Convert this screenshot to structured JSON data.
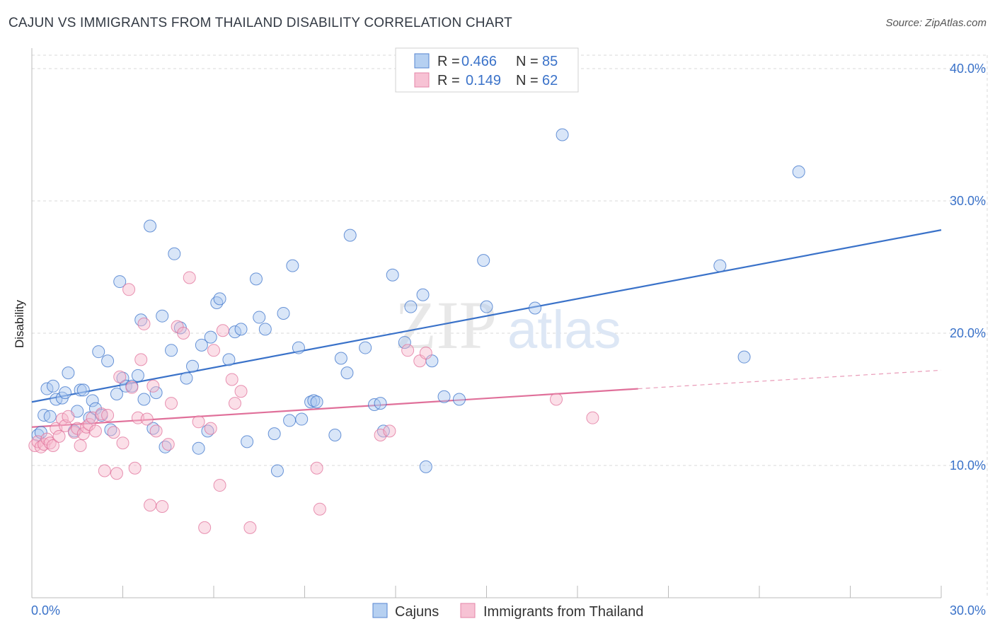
{
  "title": "CAJUN VS IMMIGRANTS FROM THAILAND DISABILITY CORRELATION CHART",
  "source": "Source: ZipAtlas.com",
  "watermark": {
    "zip": "ZIP",
    "atlas": "atlas"
  },
  "colors": {
    "blue": "#3a72c9",
    "blue_fill": "#aac8ef",
    "pink": "#e0709a",
    "pink_fill": "#f6b8cd",
    "grid": "#d8d8d8"
  },
  "legend": {
    "rows": [
      {
        "r_label": "R =",
        "r_value": "0.466",
        "n_label": "N =",
        "n_value": "85"
      },
      {
        "r_label": "R =",
        "r_value": "0.149",
        "n_label": "N =",
        "n_value": "62"
      }
    ]
  },
  "bottom_legend": [
    "Cajuns",
    "Immigrants from Thailand"
  ],
  "chart_data": {
    "type": "scatter",
    "xlabel": "",
    "ylabel": "Disability",
    "xlim": [
      0,
      30
    ],
    "ylim": [
      0,
      40
    ],
    "x_tick_labels": [
      "0.0%",
      "30.0%"
    ],
    "y_tick_labels": [
      "10.0%",
      "20.0%",
      "30.0%",
      "40.0%"
    ],
    "y_ticks": [
      10,
      20,
      30,
      40
    ],
    "grid": true,
    "legend_position": "top-center",
    "series": [
      {
        "name": "Cajuns",
        "trend": [
          [
            0,
            14.8
          ],
          [
            30,
            27.8
          ]
        ],
        "points": [
          [
            0.2,
            12.3
          ],
          [
            0.3,
            12.5
          ],
          [
            0.4,
            13.8
          ],
          [
            0.5,
            15.8
          ],
          [
            0.6,
            13.7
          ],
          [
            0.7,
            16.0
          ],
          [
            0.8,
            15.0
          ],
          [
            1.0,
            15.1
          ],
          [
            1.1,
            15.5
          ],
          [
            1.2,
            17.0
          ],
          [
            1.4,
            12.6
          ],
          [
            1.5,
            14.1
          ],
          [
            1.6,
            15.7
          ],
          [
            1.7,
            15.7
          ],
          [
            1.9,
            13.6
          ],
          [
            2.0,
            14.9
          ],
          [
            2.1,
            14.3
          ],
          [
            2.2,
            18.6
          ],
          [
            2.3,
            13.8
          ],
          [
            2.5,
            17.9
          ],
          [
            2.6,
            12.7
          ],
          [
            2.8,
            15.4
          ],
          [
            2.9,
            23.9
          ],
          [
            3.0,
            16.6
          ],
          [
            3.1,
            16.0
          ],
          [
            3.3,
            16.0
          ],
          [
            3.5,
            16.8
          ],
          [
            3.6,
            21.0
          ],
          [
            3.7,
            15.0
          ],
          [
            3.9,
            28.1
          ],
          [
            4.0,
            12.8
          ],
          [
            4.1,
            15.5
          ],
          [
            4.3,
            21.3
          ],
          [
            4.4,
            11.4
          ],
          [
            4.6,
            18.7
          ],
          [
            4.7,
            26.0
          ],
          [
            4.9,
            20.4
          ],
          [
            5.1,
            16.6
          ],
          [
            5.3,
            17.5
          ],
          [
            5.5,
            11.3
          ],
          [
            5.6,
            19.1
          ],
          [
            5.8,
            12.6
          ],
          [
            5.9,
            19.7
          ],
          [
            6.1,
            22.3
          ],
          [
            6.2,
            22.6
          ],
          [
            6.5,
            18.0
          ],
          [
            6.7,
            20.1
          ],
          [
            6.9,
            20.3
          ],
          [
            7.1,
            11.8
          ],
          [
            7.4,
            24.1
          ],
          [
            7.5,
            21.2
          ],
          [
            7.7,
            20.3
          ],
          [
            8.0,
            12.4
          ],
          [
            8.1,
            9.6
          ],
          [
            8.3,
            21.5
          ],
          [
            8.5,
            13.4
          ],
          [
            8.6,
            25.1
          ],
          [
            8.8,
            18.9
          ],
          [
            8.9,
            13.5
          ],
          [
            9.2,
            14.8
          ],
          [
            9.3,
            14.9
          ],
          [
            9.4,
            14.8
          ],
          [
            10.0,
            12.3
          ],
          [
            10.2,
            18.1
          ],
          [
            10.4,
            17.0
          ],
          [
            10.5,
            27.4
          ],
          [
            11.0,
            18.9
          ],
          [
            11.3,
            14.6
          ],
          [
            11.5,
            14.7
          ],
          [
            11.6,
            12.6
          ],
          [
            11.9,
            24.4
          ],
          [
            12.3,
            19.3
          ],
          [
            12.5,
            22.0
          ],
          [
            12.9,
            22.9
          ],
          [
            13.0,
            9.9
          ],
          [
            13.2,
            17.9
          ],
          [
            13.6,
            15.2
          ],
          [
            14.1,
            15.0
          ],
          [
            14.9,
            25.5
          ],
          [
            15.0,
            22.0
          ],
          [
            16.6,
            21.9
          ],
          [
            17.5,
            35.0
          ],
          [
            22.7,
            25.1
          ],
          [
            23.5,
            18.2
          ],
          [
            25.3,
            32.2
          ]
        ]
      },
      {
        "name": "Immigrants from Thailand",
        "trend": [
          [
            0,
            12.9
          ],
          [
            20,
            15.8
          ]
        ],
        "trend_dashed": [
          [
            20,
            15.8
          ],
          [
            30,
            17.2
          ]
        ],
        "points": [
          [
            0.1,
            11.5
          ],
          [
            0.2,
            11.8
          ],
          [
            0.3,
            11.4
          ],
          [
            0.4,
            11.6
          ],
          [
            0.5,
            12.0
          ],
          [
            0.6,
            11.7
          ],
          [
            0.7,
            11.5
          ],
          [
            0.8,
            12.8
          ],
          [
            0.9,
            12.2
          ],
          [
            1.0,
            13.5
          ],
          [
            1.1,
            13.0
          ],
          [
            1.2,
            13.7
          ],
          [
            1.4,
            12.5
          ],
          [
            1.5,
            12.8
          ],
          [
            1.6,
            11.5
          ],
          [
            1.7,
            12.4
          ],
          [
            1.8,
            12.9
          ],
          [
            1.9,
            13.1
          ],
          [
            2.0,
            13.6
          ],
          [
            2.1,
            12.6
          ],
          [
            2.3,
            13.9
          ],
          [
            2.4,
            9.6
          ],
          [
            2.5,
            13.8
          ],
          [
            2.7,
            12.5
          ],
          [
            2.8,
            9.4
          ],
          [
            2.9,
            16.7
          ],
          [
            3.0,
            11.7
          ],
          [
            3.2,
            23.3
          ],
          [
            3.3,
            15.9
          ],
          [
            3.4,
            9.8
          ],
          [
            3.5,
            13.6
          ],
          [
            3.6,
            18.0
          ],
          [
            3.7,
            20.7
          ],
          [
            3.8,
            13.5
          ],
          [
            3.9,
            7.0
          ],
          [
            4.0,
            16.0
          ],
          [
            4.1,
            12.6
          ],
          [
            4.3,
            6.9
          ],
          [
            4.5,
            11.6
          ],
          [
            4.6,
            14.7
          ],
          [
            4.8,
            20.5
          ],
          [
            5.0,
            20.0
          ],
          [
            5.2,
            24.2
          ],
          [
            5.5,
            13.3
          ],
          [
            5.7,
            5.3
          ],
          [
            5.9,
            12.8
          ],
          [
            6.0,
            18.7
          ],
          [
            6.2,
            8.5
          ],
          [
            6.3,
            20.2
          ],
          [
            6.6,
            16.5
          ],
          [
            6.7,
            14.7
          ],
          [
            6.9,
            15.6
          ],
          [
            7.2,
            5.3
          ],
          [
            9.4,
            9.8
          ],
          [
            9.5,
            6.7
          ],
          [
            11.5,
            12.3
          ],
          [
            11.8,
            12.6
          ],
          [
            12.4,
            18.7
          ],
          [
            12.8,
            17.9
          ],
          [
            13.0,
            18.5
          ],
          [
            17.3,
            15.0
          ],
          [
            18.5,
            13.6
          ]
        ]
      }
    ]
  }
}
